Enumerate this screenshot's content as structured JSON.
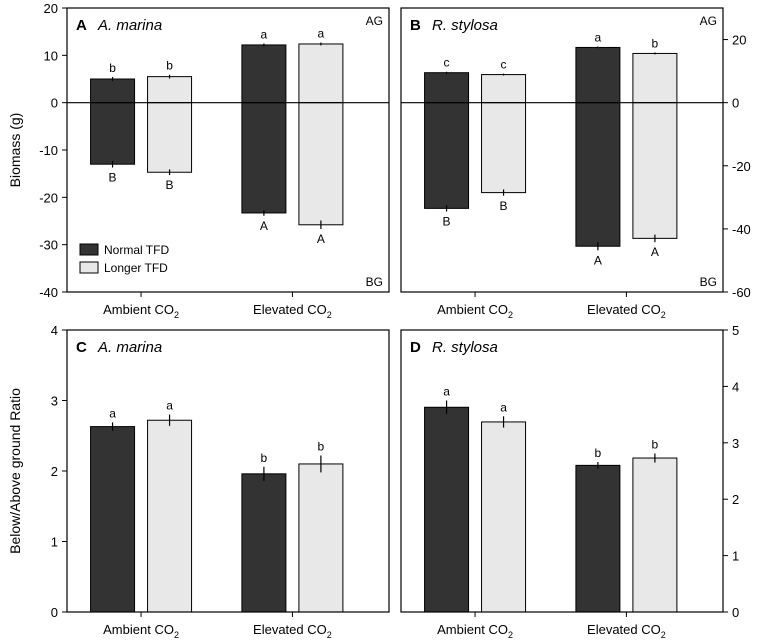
{
  "legend": {
    "normal": "Normal TFD",
    "longer": "Longer TFD"
  },
  "colors": {
    "normal": "#333333",
    "longer": "#e8e8e8",
    "axis": "#000000"
  },
  "chart_data": [
    {
      "type": "bar",
      "panel": "A",
      "title": "A. marina",
      "categories": [
        "Ambient CO2",
        "Elevated CO2"
      ],
      "ylabel": "Biomass (g)",
      "ylim": [
        -40,
        20
      ],
      "yticks": [
        -40,
        -30,
        -20,
        -10,
        0,
        10,
        20
      ],
      "corner_labels": {
        "top": "AG",
        "bottom": "BG"
      },
      "series": [
        {
          "name": "Normal TFD",
          "above": [
            5,
            12.2
          ],
          "above_err": [
            0.4,
            0.3
          ],
          "below": [
            -13,
            -23.3
          ],
          "below_err": [
            0.7,
            0.6
          ],
          "above_letters": [
            "b",
            "a"
          ],
          "below_letters": [
            "B",
            "A"
          ]
        },
        {
          "name": "Longer TFD",
          "above": [
            5.5,
            12.4
          ],
          "above_err": [
            0.4,
            0.3
          ],
          "below": [
            -14.7,
            -25.8
          ],
          "below_err": [
            0.6,
            0.9
          ],
          "above_letters": [
            "b",
            "a"
          ],
          "below_letters": [
            "B",
            "A"
          ]
        }
      ]
    },
    {
      "type": "bar",
      "panel": "B",
      "title": "R. stylosa",
      "categories": [
        "Ambient CO2",
        "Elevated CO2"
      ],
      "ylabel": "",
      "ylim": [
        -60,
        30
      ],
      "yticks": [
        -60,
        -40,
        -20,
        0,
        20
      ],
      "corner_labels": {
        "top": "AG",
        "bottom": "BG"
      },
      "series": [
        {
          "name": "Normal TFD",
          "above": [
            9.5,
            17.5
          ],
          "above_err": [
            0.3,
            0.3
          ],
          "below": [
            -33.5,
            -45.5
          ],
          "below_err": [
            1.0,
            1.3
          ],
          "above_letters": [
            "c",
            "a"
          ],
          "below_letters": [
            "B",
            "A"
          ]
        },
        {
          "name": "Longer TFD",
          "above": [
            8.9,
            15.6
          ],
          "above_err": [
            0.3,
            0.3
          ],
          "below": [
            -28.5,
            -43
          ],
          "below_err": [
            1.0,
            1.2
          ],
          "above_letters": [
            "c",
            "b"
          ],
          "below_letters": [
            "B",
            "A"
          ]
        }
      ]
    },
    {
      "type": "bar",
      "panel": "C",
      "title": "A. marina",
      "categories": [
        "Ambient CO2",
        "Elevated CO2"
      ],
      "ylabel": "Below/Above ground Ratio",
      "ylim": [
        0,
        4
      ],
      "yticks": [
        0,
        1,
        2,
        3,
        4
      ],
      "series": [
        {
          "name": "Normal TFD",
          "values": [
            2.63,
            1.96
          ],
          "err": [
            0.06,
            0.1
          ],
          "letters": [
            "a",
            "b"
          ]
        },
        {
          "name": "Longer TFD",
          "values": [
            2.72,
            2.1
          ],
          "err": [
            0.08,
            0.12
          ],
          "letters": [
            "a",
            "b"
          ]
        }
      ]
    },
    {
      "type": "bar",
      "panel": "D",
      "title": "R. stylosa",
      "categories": [
        "Ambient CO2",
        "Elevated CO2"
      ],
      "ylabel": "",
      "ylim": [
        0,
        5
      ],
      "yticks": [
        0,
        1,
        2,
        3,
        4,
        5
      ],
      "series": [
        {
          "name": "Normal TFD",
          "values": [
            3.63,
            2.6
          ],
          "err": [
            0.12,
            0.06
          ],
          "letters": [
            "a",
            "b"
          ]
        },
        {
          "name": "Longer TFD",
          "values": [
            3.37,
            2.73
          ],
          "err": [
            0.1,
            0.08
          ],
          "letters": [
            "a",
            "b"
          ]
        }
      ]
    }
  ]
}
